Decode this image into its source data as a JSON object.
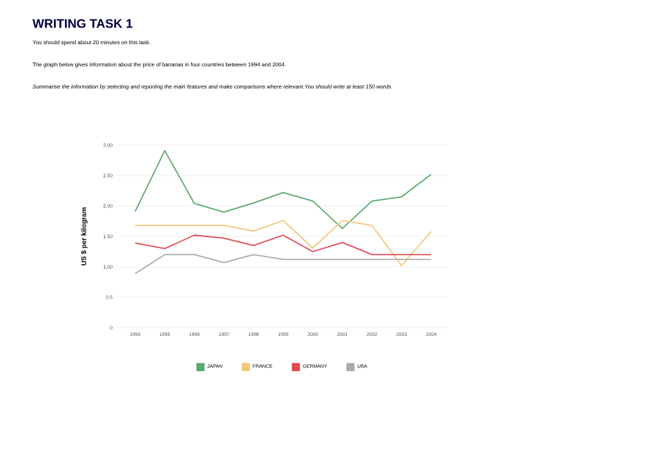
{
  "chart_data": {
    "type": "line",
    "title": "WRITING TASK 1",
    "subtitle": "You should spend about 20 minutes on this task.",
    "annotations": [
      "The graph below gives information about the price of bananas in four countries between 1994 and 2004.",
      "*Summarise the information by selecting and reporting the main features and make comparisons where relevant.You should write at least 150 words.*"
    ],
    "ylabel": "US $ per kilogram",
    "categories": [
      "1994",
      "1995",
      "1996",
      "1997",
      "1998",
      "1999",
      "2000",
      "2001",
      "2002",
      "2003",
      "2004"
    ],
    "series": [
      {
        "name": "JAPAN",
        "color": "#5aaa6e",
        "values": [
          1.91,
          2.91,
          2.04,
          1.9,
          2.05,
          2.22,
          2.08,
          1.63,
          2.08,
          2.15,
          2.52
        ]
      },
      {
        "name": "FRANCE",
        "color": "#f5c77a",
        "values": [
          1.68,
          1.68,
          1.68,
          1.68,
          1.59,
          1.76,
          1.31,
          1.76,
          1.68,
          1.02,
          1.58
        ]
      },
      {
        "name": "GERMANY",
        "color": "#e04a55",
        "values": [
          1.39,
          1.3,
          1.52,
          1.47,
          1.35,
          1.52,
          1.25,
          1.4,
          1.2,
          1.2,
          1.2
        ]
      },
      {
        "name": "USA",
        "color": "#aaaaaa",
        "values": [
          0.89,
          1.2,
          1.2,
          1.07,
          1.2,
          1.12,
          1.12,
          1.12,
          1.12,
          1.12,
          1.12
        ]
      }
    ],
    "ylim": [
      0,
      3
    ],
    "yticks": [
      {
        "value": 0,
        "label": "0"
      },
      {
        "value": 0.5,
        "label": "0.5"
      },
      {
        "value": 1,
        "label": "1.00"
      },
      {
        "value": 1.5,
        "label": "1.50"
      },
      {
        "value": 2,
        "label": "2.00"
      },
      {
        "value": 2.5,
        "label": "2.50"
      },
      {
        "value": 3,
        "label": "3.00"
      }
    ],
    "grid": "y",
    "legend": "bottom",
    "marker": "none",
    "line_style": "solid"
  }
}
